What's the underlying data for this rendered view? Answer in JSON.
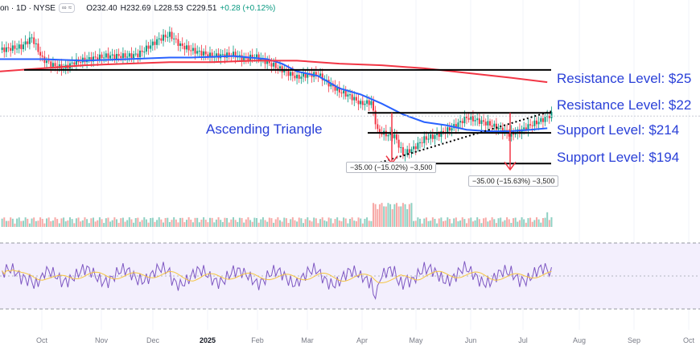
{
  "header": {
    "symbol": "on · 1D · NYSE",
    "pill": "∞ ≈",
    "open": "O232.40",
    "high": "H232.69",
    "low": "L228.53",
    "close": "C229.51",
    "change": "+0.28 (+0.12%)"
  },
  "colors": {
    "up": "#089981",
    "down": "#f23645",
    "ma_short": "#2962ff",
    "ma_long": "#f23645",
    "annotation": "#2a40d8",
    "rsi": "#7e57c2",
    "rsi_ma": "#f5c542"
  },
  "annotations": {
    "pattern": "Ascending Triangle",
    "levels": [
      {
        "label": "Resistance Level: $25",
        "price": 255
      },
      {
        "label": "Resistance Level: $22",
        "price": 227
      },
      {
        "label": "Support Level: $214",
        "price": 214
      },
      {
        "label": "Support Level: $194",
        "price": 194
      }
    ],
    "measure_left": "−35.00 (−15.02%) −3,500",
    "measure_right": "−35.00 (−15.63%) −3,500"
  },
  "chart_data": {
    "type": "line",
    "ylim": [
      180,
      290
    ],
    "x_ticks": [
      "Oct",
      "Nov",
      "Dec",
      "2025",
      "Feb",
      "Mar",
      "Apr",
      "May",
      "Jun",
      "Jul",
      "Aug",
      "Sep",
      "Oct"
    ],
    "series": [
      {
        "values": [
          [
            0,
            268
          ],
          [
            10,
            270
          ],
          [
            15,
            276
          ],
          [
            20,
            262
          ],
          [
            25,
            258
          ],
          [
            30,
            256
          ],
          [
            35,
            260
          ],
          [
            42,
            262
          ],
          [
            50,
            264
          ],
          [
            60,
            264
          ],
          [
            65,
            265
          ],
          [
            70,
            270
          ],
          [
            75,
            275
          ],
          [
            80,
            278
          ],
          [
            85,
            271
          ],
          [
            90,
            268
          ],
          [
            95,
            266
          ],
          [
            100,
            264
          ],
          [
            110,
            265
          ],
          [
            115,
            262
          ],
          [
            120,
            264
          ],
          [
            126,
            260
          ],
          [
            133,
            255
          ],
          [
            140,
            250
          ],
          [
            145,
            252
          ],
          [
            150,
            252
          ],
          [
            155,
            246
          ],
          [
            160,
            241
          ],
          [
            165,
            238
          ],
          [
            170,
            233
          ],
          [
            175,
            234
          ],
          [
            178,
            215
          ],
          [
            182,
            213
          ],
          [
            186,
            212
          ],
          [
            190,
            200
          ],
          [
            195,
            204
          ],
          [
            200,
            210
          ],
          [
            205,
            212
          ],
          [
            210,
            215
          ],
          [
            215,
            219
          ],
          [
            220,
            224
          ],
          [
            225,
            222
          ],
          [
            230,
            220
          ],
          [
            235,
            217
          ],
          [
            240,
            213
          ],
          [
            245,
            215
          ],
          [
            250,
            219
          ],
          [
            255,
            222
          ],
          [
            260,
            226
          ]
        ]
      },
      {
        "values": [
          [
            0,
            262
          ],
          [
            20,
            262
          ],
          [
            40,
            261
          ],
          [
            60,
            262
          ],
          [
            80,
            263
          ],
          [
            90,
            263
          ],
          [
            110,
            264
          ],
          [
            126,
            262
          ],
          [
            133,
            259
          ],
          [
            140,
            254
          ],
          [
            150,
            251
          ],
          [
            155,
            247
          ],
          [
            160,
            243
          ],
          [
            170,
            239
          ],
          [
            180,
            233
          ],
          [
            190,
            226
          ],
          [
            200,
            221
          ],
          [
            210,
            219
          ],
          [
            220,
            216
          ],
          [
            230,
            215
          ],
          [
            240,
            215
          ],
          [
            250,
            216
          ],
          [
            258,
            217
          ]
        ]
      },
      {
        "values": [
          [
            0,
            254
          ],
          [
            20,
            256
          ],
          [
            40,
            258
          ],
          [
            60,
            259
          ],
          [
            80,
            260
          ],
          [
            100,
            260
          ],
          [
            120,
            261
          ],
          [
            140,
            261
          ],
          [
            160,
            259
          ],
          [
            180,
            258
          ],
          [
            200,
            256
          ],
          [
            220,
            253
          ],
          [
            240,
            250
          ],
          [
            258,
            247
          ]
        ]
      }
    ]
  }
}
